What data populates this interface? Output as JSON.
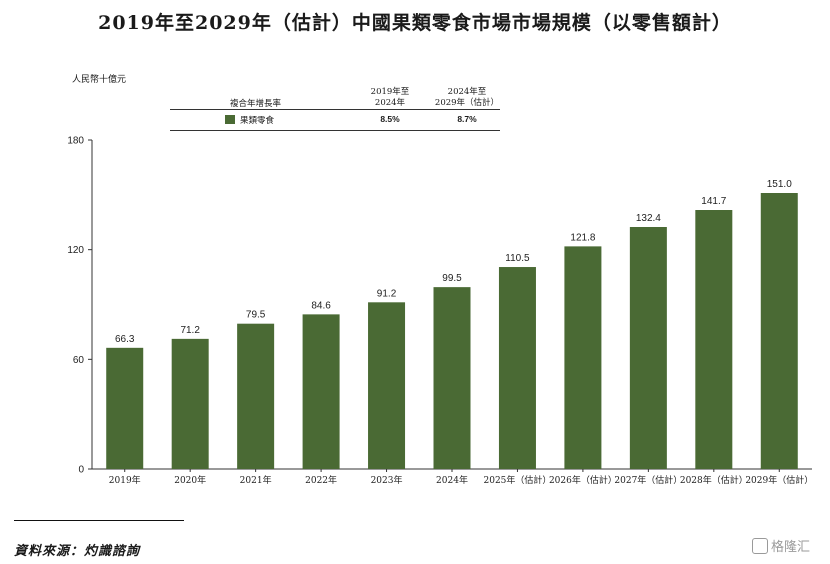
{
  "title": "2019年至2029年（估計）中國果類零食市場市場規模（以零售額計）",
  "unit": "人民幣十億元",
  "cagr_table": {
    "label": "複合年增長率",
    "period1": "2019年至\n2024年",
    "period2": "2024年至\n2029年（估計）",
    "series_name": "果類零食",
    "value1": "8.5%",
    "value2": "8.7%"
  },
  "colors": {
    "bar": "#4a6a34",
    "axis": "#333333"
  },
  "chart_data": {
    "type": "bar",
    "categories": [
      "2019年",
      "2020年",
      "2021年",
      "2022年",
      "2023年",
      "2024年",
      "2025年（估計）",
      "2026年（估計）",
      "2027年（估計）",
      "2028年（估計）",
      "2029年（估計）"
    ],
    "values": [
      66.3,
      71.2,
      79.5,
      84.6,
      91.2,
      99.5,
      110.5,
      121.8,
      132.4,
      141.7,
      151.0
    ],
    "value_labels": [
      "66.3",
      "71.2",
      "79.5",
      "84.6",
      "91.2",
      "99.5",
      "110.5",
      "121.8",
      "132.4",
      "141.7",
      "151.0"
    ],
    "yticks": [
      0,
      60,
      120,
      180
    ],
    "ylim": [
      0,
      180
    ],
    "grid": false
  },
  "source": "資料來源：灼識諮詢",
  "watermark": "格隆汇"
}
